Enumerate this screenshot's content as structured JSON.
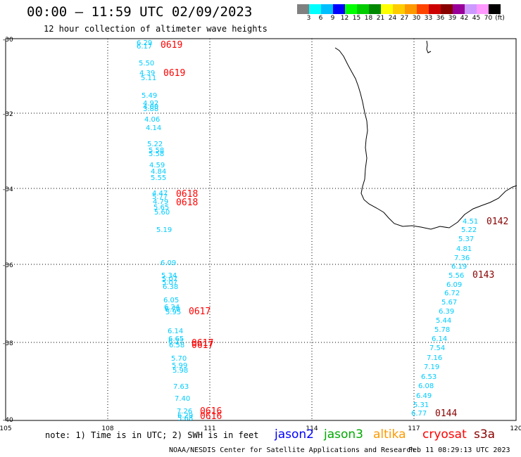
{
  "header": {
    "title": "00:00 – 11:59 UTC 02/09/2023",
    "subtitle": "12 hour collection of altimeter wave heights"
  },
  "colorbar": {
    "colors": [
      "#808080",
      "#00ffff",
      "#00bfff",
      "#0000ff",
      "#00ff00",
      "#00cc00",
      "#008800",
      "#ffff00",
      "#ffcc00",
      "#ff9900",
      "#ff4400",
      "#cc0000",
      "#880000",
      "#990099",
      "#cc99ff",
      "#ff99ff",
      "#000000"
    ],
    "labels": [
      "3",
      "6",
      "9",
      "12",
      "15",
      "18",
      "21",
      "24",
      "27",
      "30",
      "33",
      "36",
      "39",
      "42",
      "45",
      "70"
    ],
    "unit": "(ft)"
  },
  "map": {
    "lat_labels": [
      "-30",
      "-32",
      "-34",
      "-36",
      "-38",
      "-40"
    ],
    "lon_labels": [
      "105",
      "108",
      "111",
      "114",
      "117",
      "120"
    ]
  },
  "track1": {
    "color": "#00ccff",
    "labels": [
      "6.29",
      "6.17",
      "5.50",
      "4.39",
      "5.11",
      "5.49",
      "4.92",
      "4.00",
      "3.88",
      "4.06",
      "4.14",
      "5.22",
      "5.58",
      "5.58",
      "4.59",
      "4.84",
      "5.55",
      "4.47",
      "5.77",
      "4.79",
      "5.65",
      "5.60",
      "5.19",
      "6.09",
      "5.34",
      "5.07",
      "5.07",
      "6.38",
      "6.05",
      "6.24",
      "6.70",
      "5.95",
      "6.14",
      "6.65",
      "6.27",
      "6.58",
      "5.70",
      "5.99",
      "5.98",
      "7.63",
      "7.40",
      "7.26",
      "6.29",
      "5.68"
    ],
    "times": [
      "0619",
      "0619",
      "0618",
      "0618",
      "0617",
      "0617",
      "0617",
      "0616",
      "0616"
    ]
  },
  "track2": {
    "labels": [
      "4.51",
      "5.22",
      "5.37",
      "4.81",
      "7.36",
      "6.19",
      "5.56",
      "6.09",
      "6.72",
      "5.67",
      "6.39",
      "5.44",
      "5.78",
      "6.14",
      "7.54",
      "7.16",
      "7.19",
      "6.53",
      "6.08",
      "6.49",
      "5.31",
      "6.77"
    ],
    "times": [
      "0142",
      "0143",
      "0144"
    ]
  },
  "footer": {
    "note": "note: 1) Time is in UTC; 2) SWH is in feet",
    "credit": "NOAA/NESDIS Center for Satellite Applications and Research",
    "timestamp": "Feb 11 08:29:13 UTC 2023",
    "satellites": [
      {
        "name": "jason2",
        "color": "#0000ff"
      },
      {
        "name": "jason3",
        "color": "#00aa00"
      },
      {
        "name": "altika",
        "color": "#ff9900"
      },
      {
        "name": "cryosat",
        "color": "#ff0000"
      },
      {
        "name": "s3a",
        "color": "#880000"
      }
    ]
  }
}
